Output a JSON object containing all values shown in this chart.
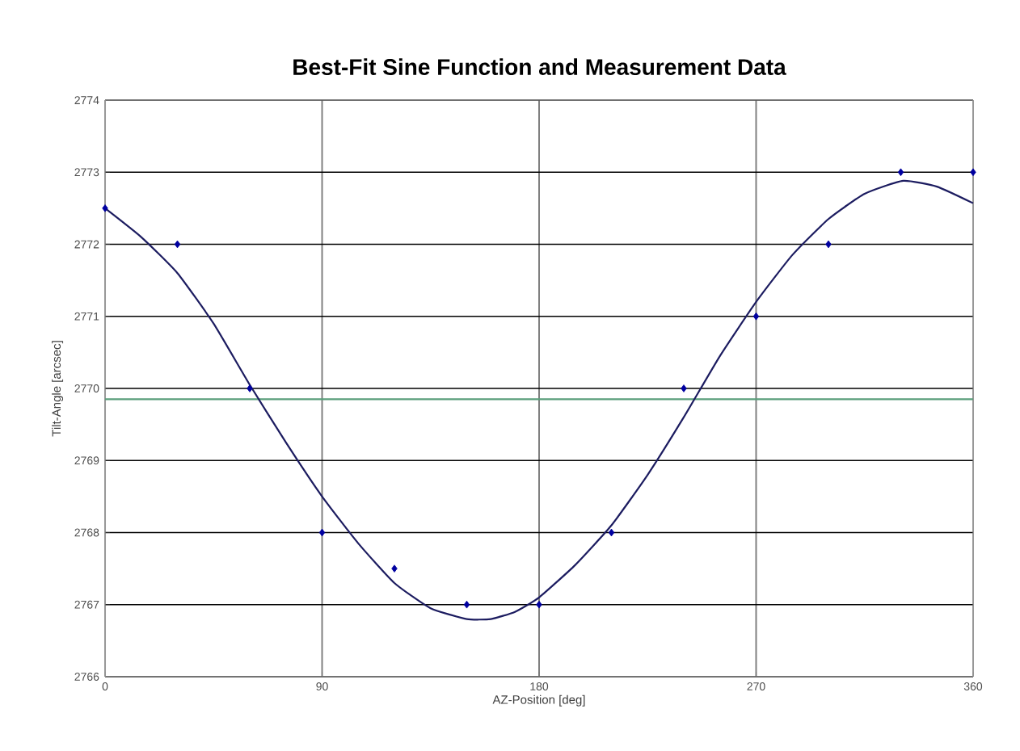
{
  "chart_data": {
    "type": "scatter",
    "title": "Best-Fit Sine Function and Measurement Data",
    "xlabel": "AZ-Position [deg]",
    "ylabel": "Tilt-Angle [arcsec]",
    "xlim": [
      0,
      360
    ],
    "xticks": [
      0,
      90,
      180,
      270,
      360
    ],
    "ylim": [
      2766,
      2774
    ],
    "yticks": [
      2766,
      2767,
      2768,
      2769,
      2770,
      2771,
      2772,
      2773,
      2774
    ],
    "grid": true,
    "series": [
      {
        "type": "line",
        "color": "#1c1c60",
        "marker": "none",
        "line_style": "solid",
        "x": [
          0,
          15,
          30,
          45,
          60,
          75,
          90,
          105,
          120,
          135,
          150,
          160,
          170,
          180,
          195,
          210,
          225,
          240,
          255,
          270,
          285,
          300,
          315,
          331,
          345,
          360
        ],
        "values": [
          2772.5,
          2772.1,
          2771.6,
          2770.9,
          2770.05,
          2769.25,
          2768.5,
          2767.85,
          2767.3,
          2766.95,
          2766.8,
          2766.8,
          2766.9,
          2767.1,
          2767.55,
          2768.1,
          2768.8,
          2769.6,
          2770.45,
          2771.2,
          2771.85,
          2772.35,
          2772.7,
          2772.88,
          2772.8,
          2772.57
        ]
      },
      {
        "color": "#0000a0",
        "marker": "diamond",
        "x": [
          0,
          30,
          60,
          90,
          120,
          150,
          180,
          210,
          240,
          270,
          300,
          330,
          360
        ],
        "values": [
          2772.5,
          2772,
          2770,
          2768,
          2767.5,
          2767,
          2767,
          2768,
          2770,
          2771,
          2772,
          2773,
          2773
        ]
      }
    ],
    "ref_lines": [
      {
        "axis": "y",
        "value": 2769.85,
        "color": "#5a9e7a",
        "line_style": "solid"
      }
    ]
  }
}
